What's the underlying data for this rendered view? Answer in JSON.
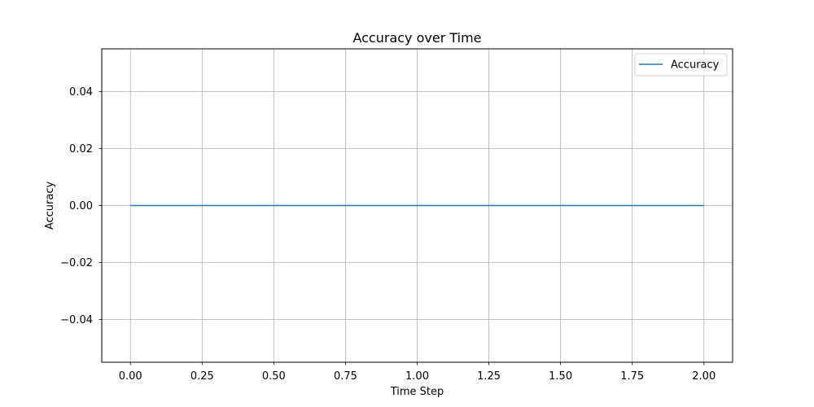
{
  "chart_data": {
    "type": "line",
    "title": "Accuracy over Time",
    "xlabel": "Time Step",
    "ylabel": "Accuracy",
    "xlim": [
      -0.1,
      2.1
    ],
    "ylim": [
      -0.055,
      0.055
    ],
    "x_ticks": [
      0.0,
      0.25,
      0.5,
      0.75,
      1.0,
      1.25,
      1.5,
      1.75,
      2.0
    ],
    "x_tick_labels": [
      "0.00",
      "0.25",
      "0.50",
      "0.75",
      "1.00",
      "1.25",
      "1.50",
      "1.75",
      "2.00"
    ],
    "y_ticks": [
      -0.04,
      -0.02,
      0.0,
      0.02,
      0.04
    ],
    "y_tick_labels": [
      "−0.04",
      "−0.02",
      "0.00",
      "0.02",
      "0.04"
    ],
    "grid": true,
    "legend_position": "top-right",
    "series": [
      {
        "name": "Accuracy",
        "color": "#1f77b4",
        "x": [
          0,
          1,
          2
        ],
        "y": [
          0.0,
          0.0,
          0.0
        ]
      }
    ]
  }
}
